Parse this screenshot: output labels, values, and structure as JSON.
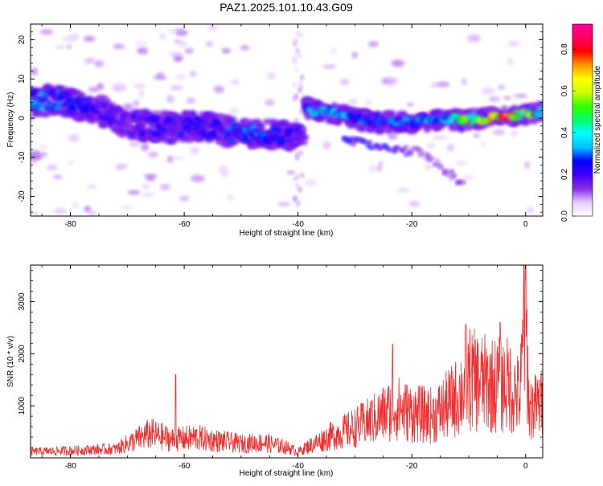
{
  "figure": {
    "title": "PAZ1.2025.101.10.43.G09"
  },
  "chart_data": [
    {
      "type": "heatmap",
      "xlabel": "Height of straight line (km)",
      "ylabel": "Frequency (Hz)",
      "xlim": [
        -87,
        3
      ],
      "ylim": [
        -25,
        24
      ],
      "xticks": [
        -80,
        -60,
        -40,
        -20,
        0
      ],
      "yticks": [
        -20,
        -10,
        0,
        10,
        20
      ],
      "colorbar": {
        "label": "Normalized spectral amplitude",
        "range": [
          0,
          0.92
        ],
        "ticks": [
          0.0,
          0.2,
          0.4,
          0.6,
          0.8
        ],
        "colormap": [
          "#ffffff",
          "#e6ccff",
          "#8a2be2",
          "#4400ff",
          "#0000ff",
          "#00bfff",
          "#00ffff",
          "#00ff66",
          "#33ff00",
          "#ccff00",
          "#ffff00",
          "#ff9900",
          "#ff0000",
          "#ff0066",
          "#ff0099"
        ]
      },
      "ridge": [
        {
          "x": -86,
          "f": 4.5,
          "a": 0.35
        },
        {
          "x": -82,
          "f": 4.5,
          "a": 0.3
        },
        {
          "x": -78,
          "f": 3.0,
          "a": 0.25
        },
        {
          "x": -74,
          "f": 1.5,
          "a": 0.2
        },
        {
          "x": -70,
          "f": -1.5,
          "a": 0.2
        },
        {
          "x": -66,
          "f": -2.0,
          "a": 0.22
        },
        {
          "x": -62,
          "f": -2.5,
          "a": 0.22
        },
        {
          "x": -58,
          "f": -2.0,
          "a": 0.22
        },
        {
          "x": -54,
          "f": -3.0,
          "a": 0.25
        },
        {
          "x": -50,
          "f": -4.0,
          "a": 0.3
        },
        {
          "x": -46,
          "f": -4.0,
          "a": 0.3
        },
        {
          "x": -42,
          "f": -4.5,
          "a": 0.25
        },
        {
          "x": -40,
          "f": -4.0,
          "a": 0.2
        },
        {
          "x": -39,
          "f": 2.5,
          "a": 0.35
        },
        {
          "x": -35,
          "f": 1.5,
          "a": 0.38
        },
        {
          "x": -31,
          "f": 0.5,
          "a": 0.35
        },
        {
          "x": -27,
          "f": -1.0,
          "a": 0.3
        },
        {
          "x": -23,
          "f": -1.0,
          "a": 0.3
        },
        {
          "x": -19,
          "f": -1.0,
          "a": 0.32
        },
        {
          "x": -15,
          "f": -0.5,
          "a": 0.35
        },
        {
          "x": -11,
          "f": -0.5,
          "a": 0.55
        },
        {
          "x": -7,
          "f": 0.0,
          "a": 0.75
        },
        {
          "x": -3,
          "f": 0.5,
          "a": 0.85
        },
        {
          "x": 0,
          "f": 1.0,
          "a": 0.6
        },
        {
          "x": 3,
          "f": 1.5,
          "a": 0.4
        }
      ],
      "secondary_band": [
        {
          "x": -30,
          "f": -6.0,
          "a": 0.25
        },
        {
          "x": -26,
          "f": -7.0,
          "a": 0.25
        },
        {
          "x": -22,
          "f": -8.0,
          "a": 0.2
        },
        {
          "x": -18,
          "f": -9.0,
          "a": 0.15
        },
        {
          "x": -12,
          "f": -16.0,
          "a": 0.15
        }
      ]
    },
    {
      "type": "line",
      "xlabel": "Height of straight line (km)",
      "ylabel": "SNR (10 * v/v)",
      "xlim": [
        -87,
        3
      ],
      "ylim": [
        0,
        3700
      ],
      "xticks": [
        -80,
        -60,
        -40,
        -20,
        0
      ],
      "yticks": [
        1000,
        2000,
        3000
      ],
      "color": "#f03030",
      "envelope": [
        {
          "x": -87,
          "y": 150
        },
        {
          "x": -80,
          "y": 180
        },
        {
          "x": -72,
          "y": 220
        },
        {
          "x": -70,
          "y": 350
        },
        {
          "x": -66,
          "y": 600
        },
        {
          "x": -62,
          "y": 450
        },
        {
          "x": -58,
          "y": 500
        },
        {
          "x": -54,
          "y": 420
        },
        {
          "x": -50,
          "y": 350
        },
        {
          "x": -46,
          "y": 380
        },
        {
          "x": -42,
          "y": 260
        },
        {
          "x": -40,
          "y": 150
        },
        {
          "x": -38,
          "y": 300
        },
        {
          "x": -34,
          "y": 550
        },
        {
          "x": -30,
          "y": 750
        },
        {
          "x": -26,
          "y": 1000
        },
        {
          "x": -23,
          "y": 1250
        },
        {
          "x": -20,
          "y": 1100
        },
        {
          "x": -16,
          "y": 1050
        },
        {
          "x": -12,
          "y": 1500
        },
        {
          "x": -10,
          "y": 1950
        },
        {
          "x": -6,
          "y": 1800
        },
        {
          "x": -3,
          "y": 1800
        },
        {
          "x": -1,
          "y": 1500
        },
        {
          "x": 0,
          "y": 3600
        },
        {
          "x": 0.6,
          "y": 1200
        },
        {
          "x": 3,
          "y": 1350
        }
      ],
      "spikes": [
        {
          "x": -61.5,
          "y": 1600
        },
        {
          "x": -23.4,
          "y": 2180
        },
        {
          "x": -10.5,
          "y": 2560
        },
        {
          "x": -4.5,
          "y": 2600
        },
        {
          "x": -0.3,
          "y": 3700
        }
      ]
    }
  ]
}
